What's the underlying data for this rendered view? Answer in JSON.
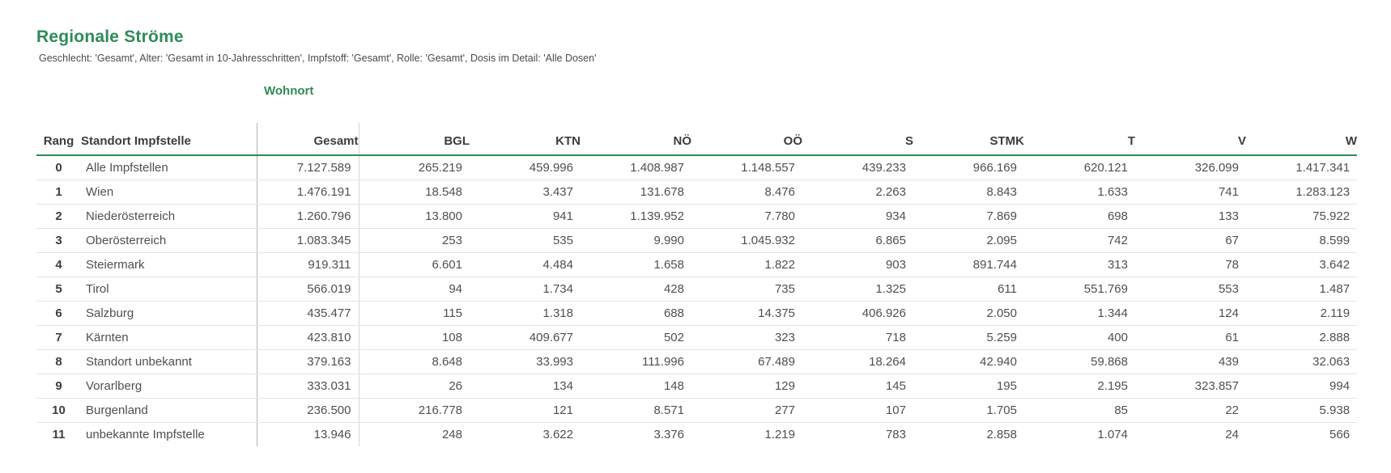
{
  "header": {
    "title": "Regionale Ströme",
    "subtitle": "Geschlecht: 'Gesamt', Alter: 'Gesamt in 10-Jahresschritten', Impfstoff: 'Gesamt', Rolle: 'Gesamt', Dosis im Detail: 'Alle Dosen'"
  },
  "colors": {
    "accent_green": "#2e8b57",
    "header_text": "#3d3d3d",
    "cell_text": "#4f4f4f",
    "subtitle_text": "#4a4a4a",
    "row_divider": "#dfe6e2",
    "column_divider_strong": "#b2b2b2",
    "column_divider_light": "#d5d5d5"
  },
  "chart_data": {
    "type": "table",
    "title": "Regionale Ströme",
    "subtitle": "Geschlecht: 'Gesamt', Alter: 'Gesamt in 10-Jahresschritten', Impfstoff: 'Gesamt', Rolle: 'Gesamt', Dosis im Detail: 'Alle Dosen'",
    "column_group_label": "Wohnort",
    "columns": [
      "Rang",
      "Standort Impfstelle",
      "Gesamt",
      "BGL",
      "KTN",
      "NÖ",
      "OÖ",
      "S",
      "STMK",
      "T",
      "V",
      "W"
    ],
    "rows": [
      {
        "rang": "0",
        "standort": "Alle Impfstellen",
        "values": [
          "7.127.589",
          "265.219",
          "459.996",
          "1.408.987",
          "1.148.557",
          "439.233",
          "966.169",
          "620.121",
          "326.099",
          "1.417.341"
        ]
      },
      {
        "rang": "1",
        "standort": "Wien",
        "values": [
          "1.476.191",
          "18.548",
          "3.437",
          "131.678",
          "8.476",
          "2.263",
          "8.843",
          "1.633",
          "741",
          "1.283.123"
        ]
      },
      {
        "rang": "2",
        "standort": "Niederösterreich",
        "values": [
          "1.260.796",
          "13.800",
          "941",
          "1.139.952",
          "7.780",
          "934",
          "7.869",
          "698",
          "133",
          "75.922"
        ]
      },
      {
        "rang": "3",
        "standort": "Oberösterreich",
        "values": [
          "1.083.345",
          "253",
          "535",
          "9.990",
          "1.045.932",
          "6.865",
          "2.095",
          "742",
          "67",
          "8.599"
        ]
      },
      {
        "rang": "4",
        "standort": "Steiermark",
        "values": [
          "919.311",
          "6.601",
          "4.484",
          "1.658",
          "1.822",
          "903",
          "891.744",
          "313",
          "78",
          "3.642"
        ]
      },
      {
        "rang": "5",
        "standort": "Tirol",
        "values": [
          "566.019",
          "94",
          "1.734",
          "428",
          "735",
          "1.325",
          "611",
          "551.769",
          "553",
          "1.487"
        ]
      },
      {
        "rang": "6",
        "standort": "Salzburg",
        "values": [
          "435.477",
          "115",
          "1.318",
          "688",
          "14.375",
          "406.926",
          "2.050",
          "1.344",
          "124",
          "2.119"
        ]
      },
      {
        "rang": "7",
        "standort": "Kärnten",
        "values": [
          "423.810",
          "108",
          "409.677",
          "502",
          "323",
          "718",
          "5.259",
          "400",
          "61",
          "2.888"
        ]
      },
      {
        "rang": "8",
        "standort": "Standort unbekannt",
        "values": [
          "379.163",
          "8.648",
          "33.993",
          "111.996",
          "67.489",
          "18.264",
          "42.940",
          "59.868",
          "439",
          "32.063"
        ]
      },
      {
        "rang": "9",
        "standort": "Vorarlberg",
        "values": [
          "333.031",
          "26",
          "134",
          "148",
          "129",
          "145",
          "195",
          "2.195",
          "323.857",
          "994"
        ]
      },
      {
        "rang": "10",
        "standort": "Burgenland",
        "values": [
          "236.500",
          "216.778",
          "121",
          "8.571",
          "277",
          "107",
          "1.705",
          "85",
          "22",
          "5.938"
        ]
      },
      {
        "rang": "11",
        "standort": "unbekannte Impfstelle",
        "values": [
          "13.946",
          "248",
          "3.622",
          "3.376",
          "1.219",
          "783",
          "2.858",
          "1.074",
          "24",
          "566"
        ]
      }
    ]
  }
}
